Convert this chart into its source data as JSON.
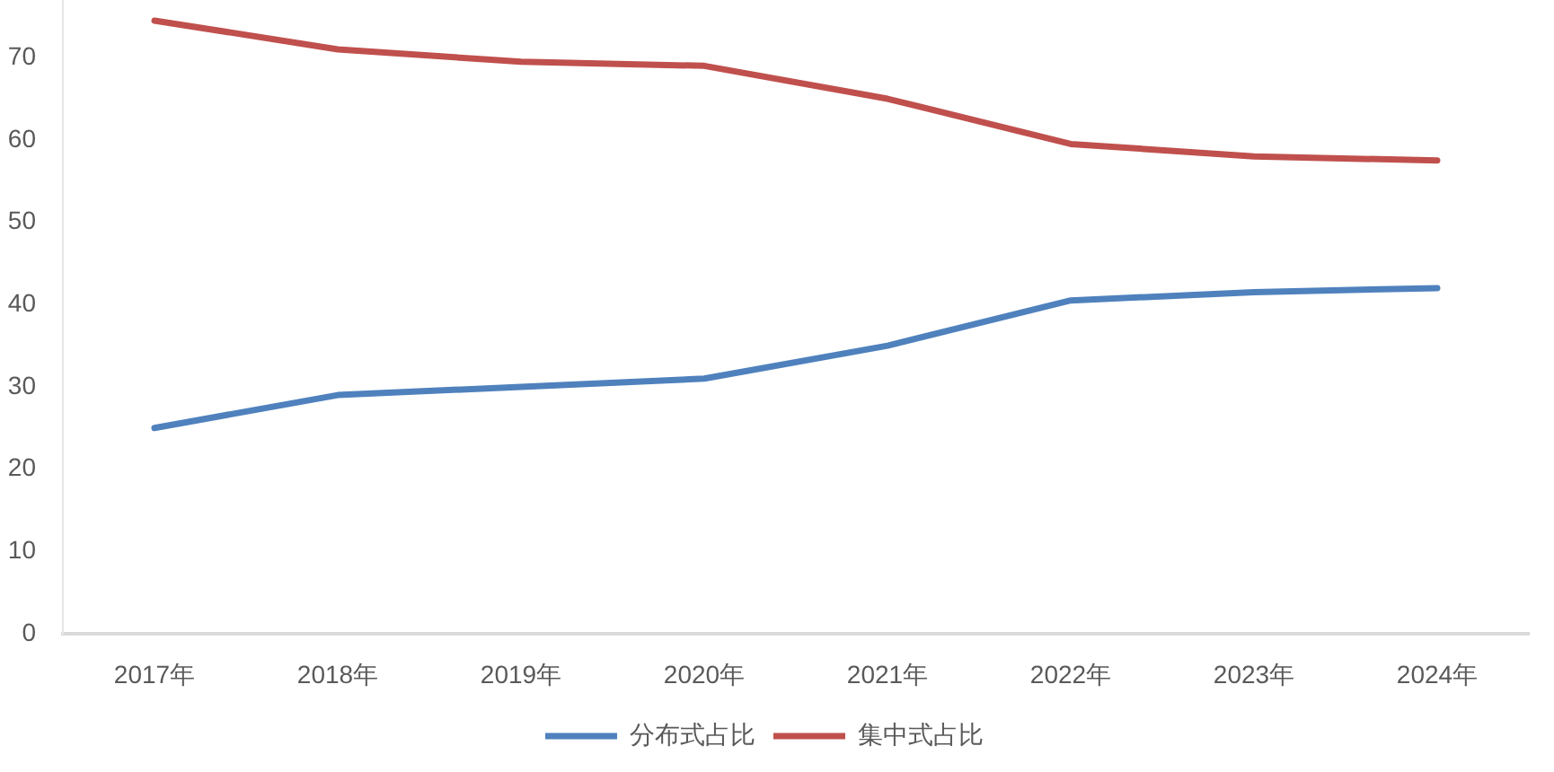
{
  "chart_data": {
    "type": "line",
    "categories": [
      "2017年",
      "2018年",
      "2019年",
      "2020年",
      "2021年",
      "2022年",
      "2023年",
      "2024年"
    ],
    "series": [
      {
        "name": "分布式占比",
        "color": "#4f81bd",
        "values": [
          25,
          29,
          30,
          31,
          35,
          40.5,
          41.5,
          42
        ]
      },
      {
        "name": "集中式占比",
        "color": "#c0504d",
        "values": [
          74.5,
          71,
          69.5,
          69,
          65,
          59.5,
          58,
          57.5
        ]
      }
    ],
    "ylim": [
      0,
      77
    ],
    "yticks": [
      0,
      10,
      20,
      30,
      40,
      50,
      60,
      70
    ],
    "grid": false,
    "legend": "bottom"
  }
}
